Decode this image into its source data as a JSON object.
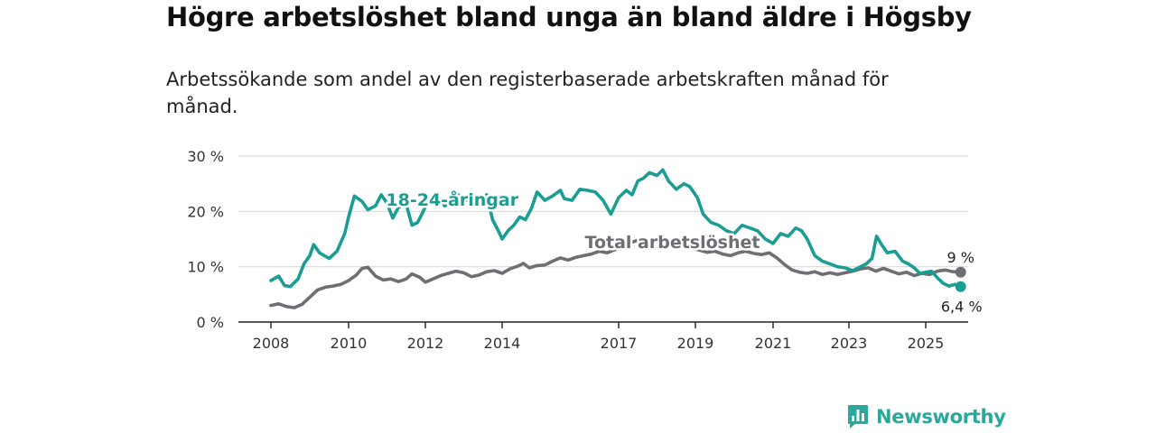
{
  "title": "Högre arbetslöshet bland unga än bland äldre i Högsby",
  "subtitle": "Arbetssökande som andel av den registerbaserade arbetskraften månad för månad.",
  "brand": {
    "name": "Newsworthy",
    "icon": "newsworthy-logo-icon",
    "color": "#2aa89b"
  },
  "chart_data": {
    "type": "line",
    "ylim": [
      0,
      30
    ],
    "xlim": [
      2007.7,
      2026.0
    ],
    "y_ticks": [
      {
        "value": 0,
        "label": "0 %"
      },
      {
        "value": 10,
        "label": "10 %"
      },
      {
        "value": 20,
        "label": "20 %"
      },
      {
        "value": 30,
        "label": "30 %"
      }
    ],
    "x_ticks": [
      {
        "value": 2008,
        "label": "2008"
      },
      {
        "value": 2010,
        "label": "2010"
      },
      {
        "value": 2012,
        "label": "2012"
      },
      {
        "value": 2014,
        "label": "2014"
      },
      {
        "value": 2017,
        "label": "2017"
      },
      {
        "value": 2019,
        "label": "2019"
      },
      {
        "value": 2021,
        "label": "2021"
      },
      {
        "value": 2023,
        "label": "2023"
      },
      {
        "value": 2025,
        "label": "2025"
      }
    ],
    "grid": true,
    "series": [
      {
        "name": "18-24-åringar",
        "color": "#1a9e94",
        "end_label": "6,4 %",
        "label_at": [
          2012.7,
          21.0
        ],
        "points": [
          [
            2008.0,
            7.5
          ],
          [
            2008.2,
            8.3
          ],
          [
            2008.35,
            6.6
          ],
          [
            2008.5,
            6.4
          ],
          [
            2008.7,
            7.8
          ],
          [
            2008.85,
            10.5
          ],
          [
            2009.0,
            12.0
          ],
          [
            2009.1,
            14.0
          ],
          [
            2009.25,
            12.5
          ],
          [
            2009.5,
            11.5
          ],
          [
            2009.7,
            12.8
          ],
          [
            2009.9,
            16.0
          ],
          [
            2010.0,
            19.0
          ],
          [
            2010.15,
            22.8
          ],
          [
            2010.35,
            21.8
          ],
          [
            2010.5,
            20.3
          ],
          [
            2010.7,
            21.0
          ],
          [
            2010.85,
            23.0
          ],
          [
            2011.0,
            21.5
          ],
          [
            2011.15,
            18.8
          ],
          [
            2011.3,
            20.7
          ],
          [
            2011.5,
            21.3
          ],
          [
            2011.65,
            17.5
          ],
          [
            2011.8,
            18.0
          ],
          [
            2012.0,
            20.8
          ],
          [
            2012.15,
            22.0
          ],
          [
            2012.3,
            23.2
          ],
          [
            2012.5,
            21.0
          ],
          [
            2012.65,
            21.5
          ],
          [
            2012.8,
            23.5
          ],
          [
            2013.0,
            21.8
          ],
          [
            2013.2,
            22.3
          ],
          [
            2013.4,
            21.5
          ],
          [
            2013.6,
            23.0
          ],
          [
            2013.75,
            18.5
          ],
          [
            2013.9,
            16.5
          ],
          [
            2014.0,
            15.0
          ],
          [
            2014.15,
            16.5
          ],
          [
            2014.3,
            17.5
          ],
          [
            2014.45,
            19.0
          ],
          [
            2014.6,
            18.5
          ],
          [
            2014.75,
            20.5
          ],
          [
            2014.9,
            23.5
          ],
          [
            2015.1,
            22.0
          ],
          [
            2015.3,
            22.8
          ],
          [
            2015.5,
            23.8
          ],
          [
            2015.6,
            22.3
          ],
          [
            2015.8,
            22.0
          ],
          [
            2016.0,
            24.0
          ],
          [
            2016.2,
            23.8
          ],
          [
            2016.4,
            23.5
          ],
          [
            2016.6,
            22.0
          ],
          [
            2016.8,
            19.5
          ],
          [
            2017.0,
            22.5
          ],
          [
            2017.2,
            23.8
          ],
          [
            2017.35,
            23.0
          ],
          [
            2017.5,
            25.5
          ],
          [
            2017.65,
            26.0
          ],
          [
            2017.8,
            27.0
          ],
          [
            2018.0,
            26.5
          ],
          [
            2018.15,
            27.5
          ],
          [
            2018.3,
            25.5
          ],
          [
            2018.5,
            24.0
          ],
          [
            2018.7,
            25.0
          ],
          [
            2018.85,
            24.5
          ],
          [
            2019.05,
            22.5
          ],
          [
            2019.2,
            19.5
          ],
          [
            2019.4,
            18.0
          ],
          [
            2019.6,
            17.5
          ],
          [
            2019.8,
            16.5
          ],
          [
            2020.0,
            16.0
          ],
          [
            2020.2,
            17.5
          ],
          [
            2020.4,
            17.0
          ],
          [
            2020.6,
            16.5
          ],
          [
            2020.8,
            15.0
          ],
          [
            2021.0,
            14.2
          ],
          [
            2021.2,
            16.0
          ],
          [
            2021.4,
            15.5
          ],
          [
            2021.6,
            17.0
          ],
          [
            2021.75,
            16.5
          ],
          [
            2021.9,
            15.0
          ],
          [
            2022.1,
            12.0
          ],
          [
            2022.3,
            11.0
          ],
          [
            2022.5,
            10.5
          ],
          [
            2022.7,
            10.0
          ],
          [
            2022.9,
            9.8
          ],
          [
            2023.1,
            9.3
          ],
          [
            2023.3,
            10.0
          ],
          [
            2023.45,
            10.5
          ],
          [
            2023.6,
            11.5
          ],
          [
            2023.72,
            15.5
          ],
          [
            2023.85,
            14.0
          ],
          [
            2024.0,
            12.5
          ],
          [
            2024.2,
            12.8
          ],
          [
            2024.4,
            11.0
          ],
          [
            2024.55,
            10.5
          ],
          [
            2024.7,
            9.8
          ],
          [
            2024.85,
            8.8
          ],
          [
            2025.0,
            9.0
          ],
          [
            2025.15,
            9.2
          ],
          [
            2025.3,
            8.0
          ],
          [
            2025.45,
            7.0
          ],
          [
            2025.6,
            6.5
          ],
          [
            2025.75,
            6.8
          ],
          [
            2025.9,
            6.4
          ]
        ]
      },
      {
        "name": "Total arbetslöshet",
        "color": "#6e6e73",
        "end_label": "9 %",
        "label_at": [
          2018.4,
          13.4
        ],
        "points": [
          [
            2008.0,
            3.0
          ],
          [
            2008.2,
            3.3
          ],
          [
            2008.4,
            2.8
          ],
          [
            2008.6,
            2.6
          ],
          [
            2008.8,
            3.2
          ],
          [
            2009.0,
            4.5
          ],
          [
            2009.2,
            5.8
          ],
          [
            2009.4,
            6.3
          ],
          [
            2009.6,
            6.5
          ],
          [
            2009.8,
            6.8
          ],
          [
            2010.0,
            7.5
          ],
          [
            2010.2,
            8.5
          ],
          [
            2010.35,
            9.7
          ],
          [
            2010.5,
            9.9
          ],
          [
            2010.7,
            8.3
          ],
          [
            2010.9,
            7.6
          ],
          [
            2011.1,
            7.8
          ],
          [
            2011.3,
            7.3
          ],
          [
            2011.5,
            7.8
          ],
          [
            2011.65,
            8.7
          ],
          [
            2011.85,
            8.1
          ],
          [
            2012.0,
            7.2
          ],
          [
            2012.2,
            7.8
          ],
          [
            2012.4,
            8.4
          ],
          [
            2012.6,
            8.8
          ],
          [
            2012.8,
            9.2
          ],
          [
            2013.0,
            8.9
          ],
          [
            2013.2,
            8.2
          ],
          [
            2013.4,
            8.5
          ],
          [
            2013.6,
            9.1
          ],
          [
            2013.8,
            9.3
          ],
          [
            2014.0,
            8.8
          ],
          [
            2014.2,
            9.6
          ],
          [
            2014.4,
            10.1
          ],
          [
            2014.55,
            10.6
          ],
          [
            2014.7,
            9.8
          ],
          [
            2014.9,
            10.2
          ],
          [
            2015.1,
            10.3
          ],
          [
            2015.3,
            11.0
          ],
          [
            2015.5,
            11.6
          ],
          [
            2015.7,
            11.2
          ],
          [
            2015.9,
            11.7
          ],
          [
            2016.1,
            12.0
          ],
          [
            2016.3,
            12.3
          ],
          [
            2016.5,
            12.8
          ],
          [
            2016.7,
            12.5
          ],
          [
            2016.9,
            13.1
          ],
          [
            2017.1,
            13.3
          ],
          [
            2017.3,
            14.3
          ],
          [
            2017.5,
            14.8
          ],
          [
            2017.7,
            15.1
          ],
          [
            2017.9,
            14.6
          ],
          [
            2018.1,
            14.8
          ],
          [
            2018.3,
            14.2
          ],
          [
            2018.5,
            14.0
          ],
          [
            2018.7,
            13.6
          ],
          [
            2018.9,
            13.3
          ],
          [
            2019.1,
            13.0
          ],
          [
            2019.3,
            12.6
          ],
          [
            2019.5,
            12.8
          ],
          [
            2019.7,
            12.3
          ],
          [
            2019.9,
            12.0
          ],
          [
            2020.1,
            12.5
          ],
          [
            2020.3,
            12.8
          ],
          [
            2020.5,
            12.4
          ],
          [
            2020.7,
            12.2
          ],
          [
            2020.9,
            12.5
          ],
          [
            2021.1,
            11.6
          ],
          [
            2021.3,
            10.4
          ],
          [
            2021.5,
            9.4
          ],
          [
            2021.7,
            9.0
          ],
          [
            2021.9,
            8.8
          ],
          [
            2022.1,
            9.1
          ],
          [
            2022.3,
            8.6
          ],
          [
            2022.5,
            8.9
          ],
          [
            2022.7,
            8.6
          ],
          [
            2022.9,
            8.9
          ],
          [
            2023.1,
            9.2
          ],
          [
            2023.3,
            9.6
          ],
          [
            2023.5,
            9.8
          ],
          [
            2023.7,
            9.2
          ],
          [
            2023.9,
            9.7
          ],
          [
            2024.1,
            9.2
          ],
          [
            2024.3,
            8.7
          ],
          [
            2024.5,
            9.0
          ],
          [
            2024.7,
            8.4
          ],
          [
            2024.9,
            8.8
          ],
          [
            2025.1,
            8.6
          ],
          [
            2025.3,
            9.2
          ],
          [
            2025.5,
            9.4
          ],
          [
            2025.7,
            9.1
          ],
          [
            2025.9,
            9.0
          ]
        ]
      }
    ]
  }
}
